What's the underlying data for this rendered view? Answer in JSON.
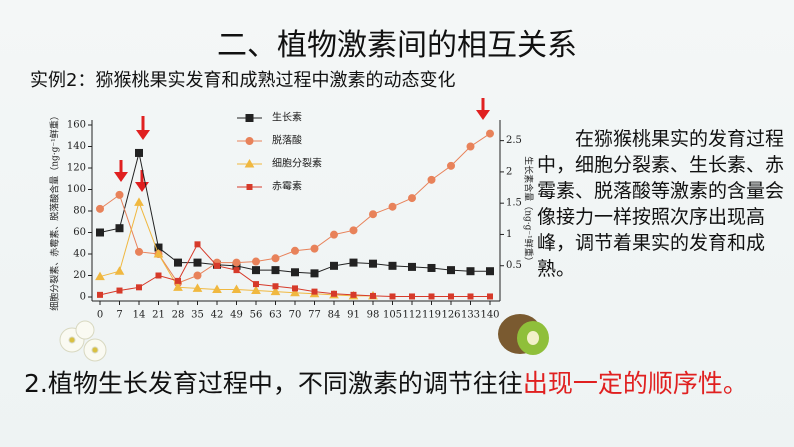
{
  "slide": {
    "title": "二、植物激素间的相互关系",
    "subtitle": "实例2：猕猴桃果实发育和成熟过程中激素的动态变化",
    "paragraph": "在猕猴桃果实的发育过程中，细胞分裂素、生长素、赤霉素、脱落酸等激素的含量会像接力一样按照次序出现高峰，调节着果实的发育和成熟。",
    "conclusion": "2.植物生长发育过程中，不同激素的调节往往",
    "conclusion_highlight": "出现一定的顺序性。"
  },
  "chart_data": {
    "type": "line",
    "y_label": "细胞分裂素、赤霉素、脱落酸含量（ng·g⁻¹鲜重）",
    "y2_label": "生长素含量（ng·g⁻¹鲜重）",
    "x": [
      0,
      7,
      14,
      21,
      28,
      35,
      42,
      49,
      56,
      63,
      70,
      77,
      84,
      91,
      98,
      105,
      112,
      119,
      126,
      133,
      140
    ],
    "xlim": [
      0,
      140
    ],
    "xticks": [
      0,
      7,
      14,
      21,
      28,
      35,
      42,
      49,
      56,
      63,
      70,
      77,
      84,
      91,
      98,
      105,
      112,
      119,
      126,
      133,
      140
    ],
    "ylim": [
      0,
      160
    ],
    "yticks": [
      0,
      20,
      40,
      60,
      80,
      100,
      120,
      140,
      160
    ],
    "y2lim": [
      0,
      2.75
    ],
    "y2ticks": [
      0.5,
      1,
      1.5,
      2,
      2.5
    ],
    "series": [
      {
        "name": "生长素",
        "color": "#222222",
        "marker": "square",
        "values": [
          60,
          64,
          134,
          46,
          32,
          32,
          30,
          29,
          25,
          25,
          23,
          22,
          29,
          32,
          31,
          29,
          28,
          27,
          25,
          24,
          24
        ]
      },
      {
        "name": "脱落酸",
        "color": "#e8825a",
        "marker": "circle",
        "values": [
          82,
          95,
          42,
          40,
          13,
          20,
          32,
          32,
          33,
          36,
          43,
          45,
          58,
          62,
          77,
          84,
          92,
          109,
          122,
          140,
          152
        ]
      },
      {
        "name": "细胞分裂素",
        "color": "#f0b840",
        "marker": "triangle",
        "values": [
          19,
          24,
          88,
          40,
          9,
          8,
          7,
          7,
          6,
          5,
          4,
          3,
          2,
          1,
          1,
          null,
          null,
          null,
          null,
          null,
          null
        ]
      },
      {
        "name": "赤霉素",
        "color": "#d63a2a",
        "marker": "smallsquare",
        "values": [
          2,
          6,
          9,
          20,
          15,
          49,
          29,
          25,
          12,
          10,
          8,
          5,
          3,
          2,
          1,
          0.5,
          0.5,
          0.5,
          0.5,
          0.5,
          0.5
        ]
      }
    ]
  }
}
